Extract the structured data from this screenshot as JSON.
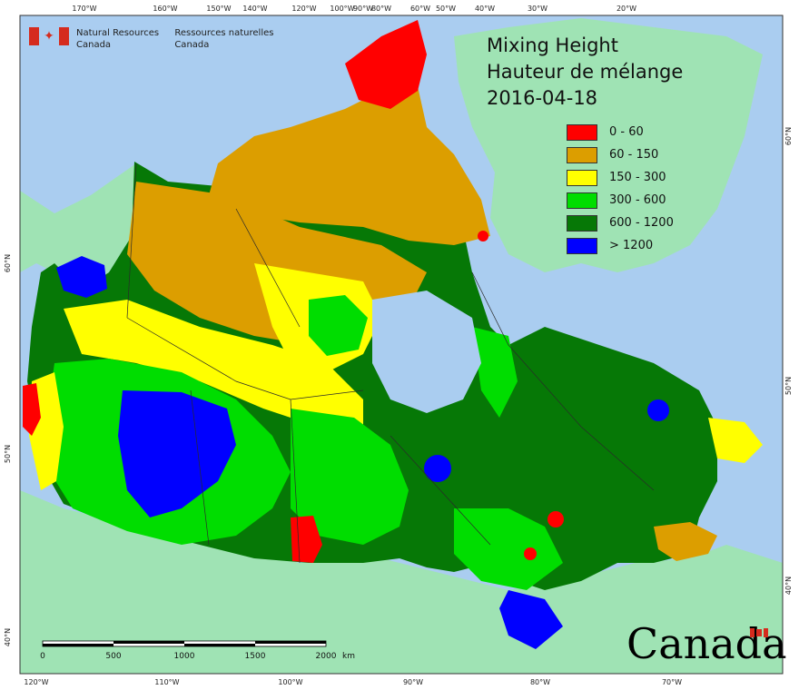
{
  "map": {
    "title_lines": [
      "Mixing Height",
      "Hauteur de mélange",
      "2016-04-18"
    ],
    "agency": {
      "en_lines": [
        "Natural Resources",
        "Canada"
      ],
      "fr_lines": [
        "Ressources naturelles",
        "Canada"
      ]
    },
    "wordmark": "Canada",
    "legend": [
      {
        "label": "0 - 60",
        "color": "#ff0000"
      },
      {
        "label": "60 - 150",
        "color": "#dc9e00"
      },
      {
        "label": "150 - 300",
        "color": "#ffff00"
      },
      {
        "label": "300 - 600",
        "color": "#00dd00"
      },
      {
        "label": "600 - 1200",
        "color": "#067806"
      },
      {
        "label": "> 1200",
        "color": "#0000ff"
      }
    ],
    "scale": {
      "ticks": [
        "0",
        "500",
        "1000",
        "1500",
        "2000"
      ],
      "unit": "km"
    },
    "top_lon_labels": [
      "170°W",
      "160°W",
      "150°W",
      "140°W",
      "120°W",
      "100°W",
      "90°W",
      "80°W",
      "60°W",
      "50°W",
      "40°W",
      "30°W",
      "20°W"
    ],
    "bottom_lon_labels": [
      "120°W",
      "110°W",
      "100°W",
      "90°W",
      "80°W",
      "70°W"
    ],
    "left_lat_labels": [
      "60°N",
      "50°N",
      "40°N"
    ],
    "right_lat_labels": [
      "60°N",
      "50°N",
      "40°N"
    ],
    "colors": {
      "ocean": "#aacdf0",
      "land_other": "#9fe3b4",
      "border": "#2a2a2a"
    }
  }
}
